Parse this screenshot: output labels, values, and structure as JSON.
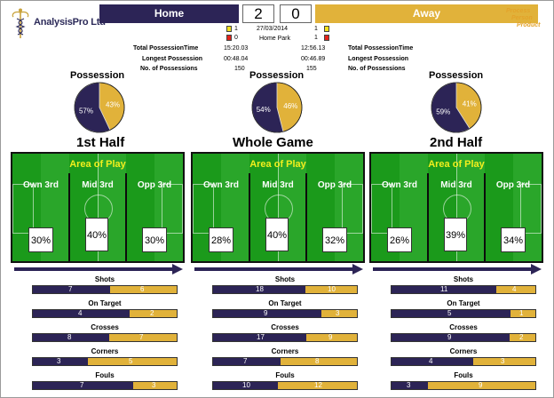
{
  "brand": {
    "name": "AnalysisPro Ltd"
  },
  "process_tag": {
    "lines": [
      "Process",
      "Person",
      "Product"
    ]
  },
  "match": {
    "home_team": "Home",
    "away_team": "Away",
    "home_score": "2",
    "away_score": "0",
    "date": "27/03/2014",
    "venue": "Home Park",
    "home_yellow": "1",
    "home_red": "0",
    "away_yellow": "1",
    "away_red": "1"
  },
  "possession_stats": {
    "labels": [
      "Total PossessionTime",
      "Longest Possession",
      "No. of Possessions"
    ],
    "home_values": [
      "15:20.03",
      "00:48.04",
      "150"
    ],
    "away_values": [
      "12:56.13",
      "00:46.89",
      "155"
    ]
  },
  "colors": {
    "home": "#2c2456",
    "away": "#e1b23a",
    "pitch": "#1b9a1b",
    "area_text": "#f2ef1d",
    "arrow": "#2c2456"
  },
  "panels": [
    {
      "title": "1st Half",
      "possession_title": "Possession",
      "possession": {
        "home": 57,
        "away": 43,
        "home_label": "57%",
        "away_label": "43%"
      },
      "area_title": "Area of Play",
      "zones": [
        {
          "label": "Own 3rd",
          "value": "30%"
        },
        {
          "label": "Mid 3rd",
          "value": "40%"
        },
        {
          "label": "Opp 3rd",
          "value": "30%"
        }
      ],
      "stats": [
        {
          "label": "Shots",
          "home": "7",
          "away": "6",
          "home_frac": 0.54
        },
        {
          "label": "On Target",
          "home": "4",
          "away": "2",
          "home_frac": 0.67
        },
        {
          "label": "Crosses",
          "home": "8",
          "away": "7",
          "home_frac": 0.53
        },
        {
          "label": "Corners",
          "home": "3",
          "away": "5",
          "home_frac": 0.38
        },
        {
          "label": "Fouls",
          "home": "7",
          "away": "3",
          "home_frac": 0.7
        }
      ]
    },
    {
      "title": "Whole Game",
      "possession_title": "Possession",
      "possession": {
        "home": 54,
        "away": 46,
        "home_label": "54%",
        "away_label": "46%"
      },
      "area_title": "Area of Play",
      "zones": [
        {
          "label": "Own 3rd",
          "value": "28%"
        },
        {
          "label": "Mid 3rd",
          "value": "40%"
        },
        {
          "label": "Opp 3rd",
          "value": "32%"
        }
      ],
      "stats": [
        {
          "label": "Shots",
          "home": "18",
          "away": "10",
          "home_frac": 0.64
        },
        {
          "label": "On Target",
          "home": "9",
          "away": "3",
          "home_frac": 0.75
        },
        {
          "label": "Crosses",
          "home": "17",
          "away": "9",
          "home_frac": 0.65
        },
        {
          "label": "Corners",
          "home": "7",
          "away": "8",
          "home_frac": 0.47
        },
        {
          "label": "Fouls",
          "home": "10",
          "away": "12",
          "home_frac": 0.45
        }
      ]
    },
    {
      "title": "2nd Half",
      "possession_title": "Possession",
      "possession": {
        "home": 59,
        "away": 41,
        "home_label": "59%",
        "away_label": "41%"
      },
      "area_title": "Area of Play",
      "zones": [
        {
          "label": "Own 3rd",
          "value": "26%"
        },
        {
          "label": "Mid 3rd",
          "value": "39%"
        },
        {
          "label": "Opp 3rd",
          "value": "34%"
        }
      ],
      "stats": [
        {
          "label": "Shots",
          "home": "11",
          "away": "4",
          "home_frac": 0.73
        },
        {
          "label": "On Target",
          "home": "5",
          "away": "1",
          "home_frac": 0.83
        },
        {
          "label": "Crosses",
          "home": "9",
          "away": "2",
          "home_frac": 0.82
        },
        {
          "label": "Corners",
          "home": "4",
          "away": "3",
          "home_frac": 0.57
        },
        {
          "label": "Fouls",
          "home": "3",
          "away": "9",
          "home_frac": 0.25
        }
      ]
    }
  ]
}
